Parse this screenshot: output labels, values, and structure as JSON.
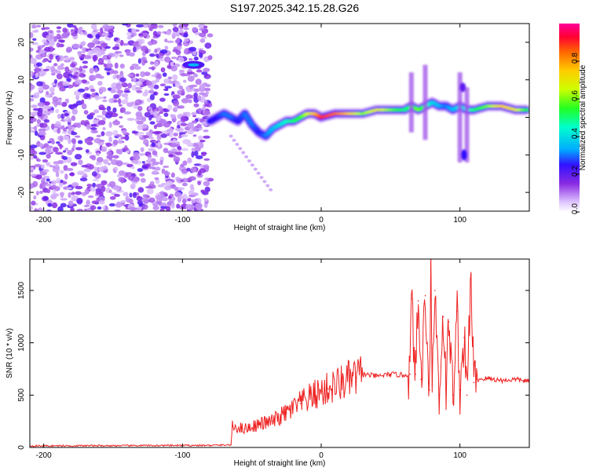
{
  "page": {
    "title": "S197.2025.342.15.28.G26"
  },
  "chart_data": [
    {
      "type": "heatmap",
      "xlabel": "Height of straight line (km)",
      "ylabel": "Frequency (Hz)",
      "xlim": [
        -210,
        150
      ],
      "ylim": [
        -25,
        25
      ],
      "xticks": [
        -200,
        -100,
        0,
        100
      ],
      "yticks": [
        -20,
        -10,
        0,
        10,
        20
      ],
      "colorbar": {
        "label": "Normalized spectral amplitude",
        "range": [
          0,
          1
        ],
        "ticks": [
          0.0,
          0.2,
          0.4,
          0.6,
          0.8
        ]
      },
      "ridge": {
        "x": [
          -80,
          -75,
          -70,
          -65,
          -60,
          -55,
          -50,
          -45,
          -40,
          -35,
          -30,
          -25,
          -20,
          -15,
          -10,
          -5,
          0,
          10,
          20,
          30,
          40,
          50,
          60,
          65,
          70,
          75,
          80,
          85,
          90,
          95,
          100,
          105,
          110,
          120,
          130,
          140,
          150
        ],
        "freq": [
          -1,
          0,
          1,
          0,
          -1,
          1,
          -2,
          -4,
          -5,
          -3,
          -2,
          -1,
          -1,
          0,
          1,
          1,
          0,
          1,
          1,
          1,
          2,
          2,
          2,
          3,
          2,
          3,
          4,
          3,
          3,
          2,
          3,
          2,
          2,
          3,
          3,
          2,
          2
        ],
        "amplitude": [
          0.25,
          0.25,
          0.3,
          0.3,
          0.25,
          0.3,
          0.3,
          0.25,
          0.3,
          0.35,
          0.4,
          0.45,
          0.5,
          0.55,
          0.65,
          0.75,
          0.9,
          0.85,
          0.75,
          0.6,
          0.7,
          0.6,
          0.5,
          0.5,
          0.6,
          0.5,
          0.4,
          0.35,
          0.3,
          0.35,
          0.4,
          0.4,
          0.5,
          0.6,
          0.75,
          0.7,
          0.5
        ]
      }
    },
    {
      "type": "line",
      "xlabel": "Height of straight line (km)",
      "ylabel": "SNR (10 * v/v)",
      "xlim": [
        -210,
        150
      ],
      "ylim": [
        0,
        1800
      ],
      "xticks": [
        -200,
        -100,
        0,
        100
      ],
      "yticks": [
        0,
        500,
        1000,
        1500
      ],
      "series": [
        {
          "name": "SNR",
          "color": "#ee2222",
          "x": [
            -210,
            -80,
            -65,
            -64,
            -55,
            -45,
            -35,
            -25,
            -15,
            -5,
            5,
            15,
            25,
            30,
            40,
            50,
            60,
            64,
            65,
            68,
            70,
            72,
            75,
            78,
            79,
            80,
            82,
            85,
            88,
            90,
            92,
            95,
            98,
            100,
            103,
            105,
            108,
            110,
            112,
            120,
            130,
            140,
            150
          ],
          "y": [
            15,
            20,
            25,
            200,
            180,
            220,
            250,
            330,
            420,
            500,
            560,
            620,
            670,
            700,
            680,
            700,
            690,
            700,
            1420,
            700,
            1400,
            650,
            1450,
            550,
            1800,
            600,
            1500,
            500,
            1250,
            550,
            1200,
            500,
            1300,
            550,
            1050,
            500,
            1650,
            620,
            650,
            660,
            640,
            650,
            630
          ]
        }
      ]
    }
  ]
}
